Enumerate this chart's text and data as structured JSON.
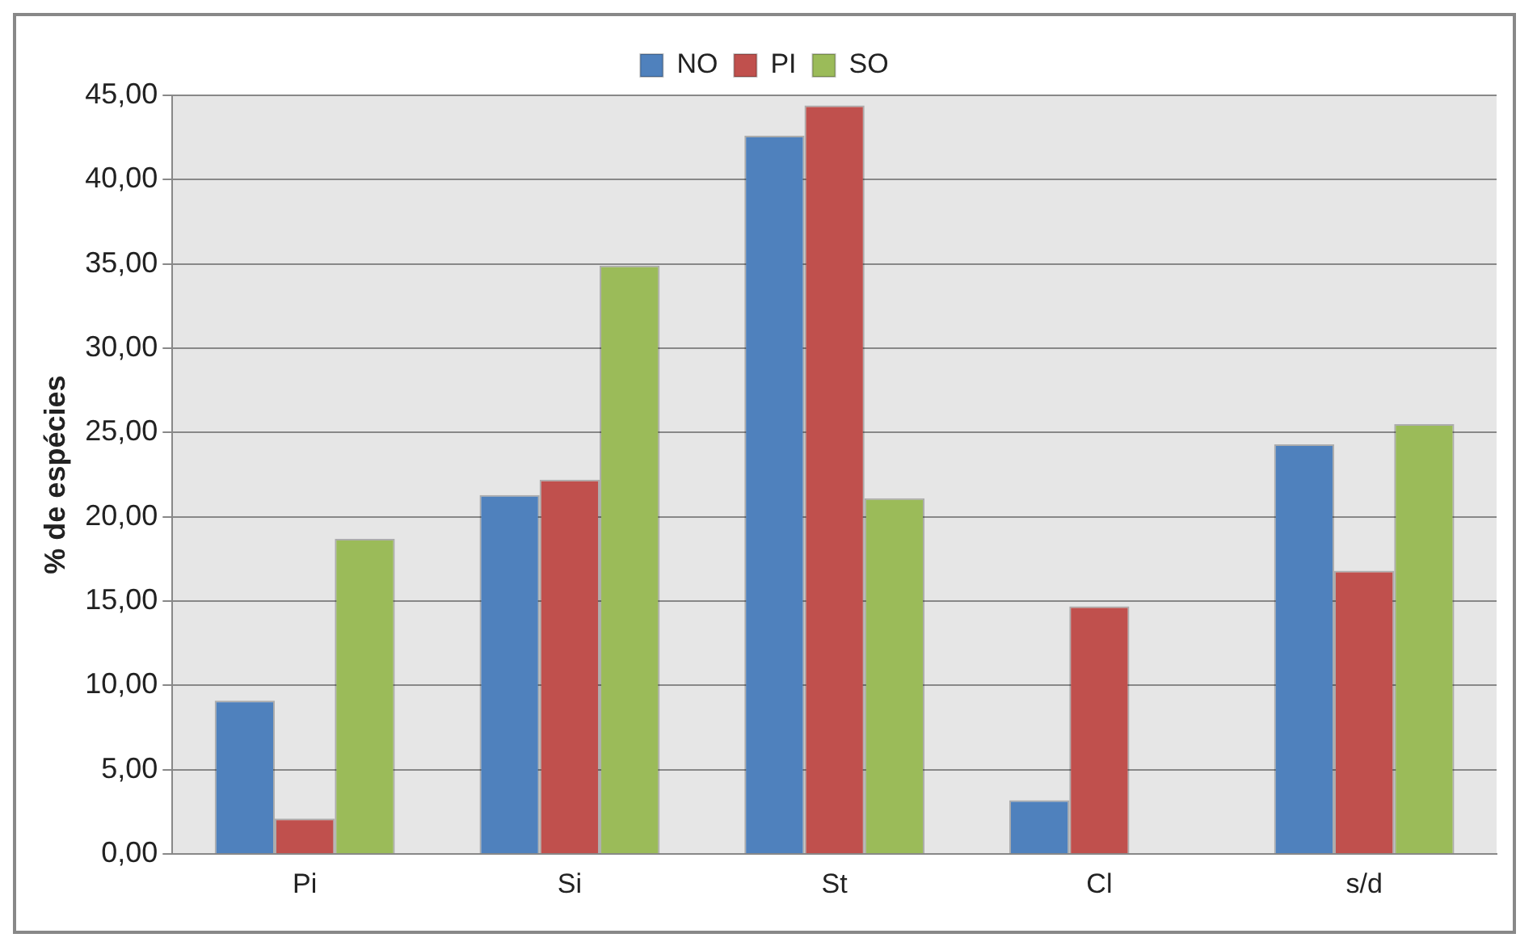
{
  "chart_data": {
    "type": "bar",
    "ylabel": "% de espécies",
    "categories": [
      "Pi",
      "Si",
      "St",
      "Cl",
      "s/d"
    ],
    "series": [
      {
        "name": "NO",
        "color": "#4f81bd",
        "values": [
          9.1,
          21.3,
          42.6,
          3.2,
          24.3
        ]
      },
      {
        "name": "PI",
        "color": "#c0504d",
        "values": [
          2.1,
          22.2,
          44.4,
          14.7,
          16.8
        ]
      },
      {
        "name": "SO",
        "color": "#9bbb59",
        "values": [
          18.7,
          34.9,
          21.1,
          null,
          25.5
        ]
      }
    ],
    "ylim": [
      0,
      45
    ],
    "yticks": [
      {
        "value": 0,
        "label": "0,00"
      },
      {
        "value": 5,
        "label": "5,00"
      },
      {
        "value": 10,
        "label": "10,00"
      },
      {
        "value": 15,
        "label": "15,00"
      },
      {
        "value": 20,
        "label": "20,00"
      },
      {
        "value": 25,
        "label": "25,00"
      },
      {
        "value": 30,
        "label": "30,00"
      },
      {
        "value": 35,
        "label": "35,00"
      },
      {
        "value": 40,
        "label": "40,00"
      },
      {
        "value": 45,
        "label": "45,00"
      }
    ],
    "grid": "y",
    "legend": "top"
  }
}
